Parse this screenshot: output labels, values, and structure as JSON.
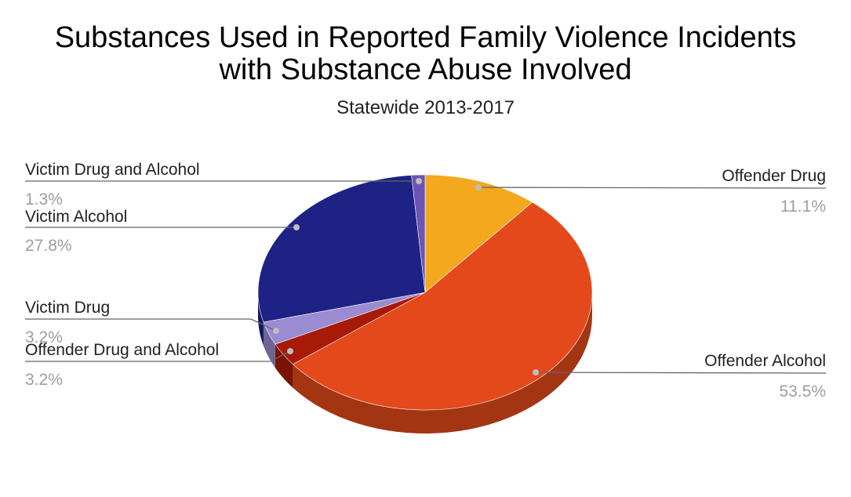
{
  "chart_data": {
    "type": "pie",
    "title_line1": "Substances Used in Reported Family Violence Incidents",
    "title_line2": "with Substance Abuse Involved",
    "subtitle": "Statewide 2013-2017",
    "slices": [
      {
        "label": "Offender Drug",
        "value": 11.1,
        "value_label": "11.1%",
        "color": "#f4a81d"
      },
      {
        "label": "Offender Alcohol",
        "value": 53.5,
        "value_label": "53.5%",
        "color": "#e4491b"
      },
      {
        "label": "Offender Drug and Alcohol",
        "value": 3.2,
        "value_label": "3.2%",
        "color": "#a61a07"
      },
      {
        "label": "Victim Drug",
        "value": 3.2,
        "value_label": "3.2%",
        "color": "#9b8bd0"
      },
      {
        "label": "Victim Alcohol",
        "value": 27.8,
        "value_label": "27.8%",
        "color": "#1e2284"
      },
      {
        "label": "Victim Drug and Alcohol",
        "value": 1.3,
        "value_label": "1.3%",
        "color": "#6a55b5"
      }
    ],
    "legend": "callout labels"
  }
}
